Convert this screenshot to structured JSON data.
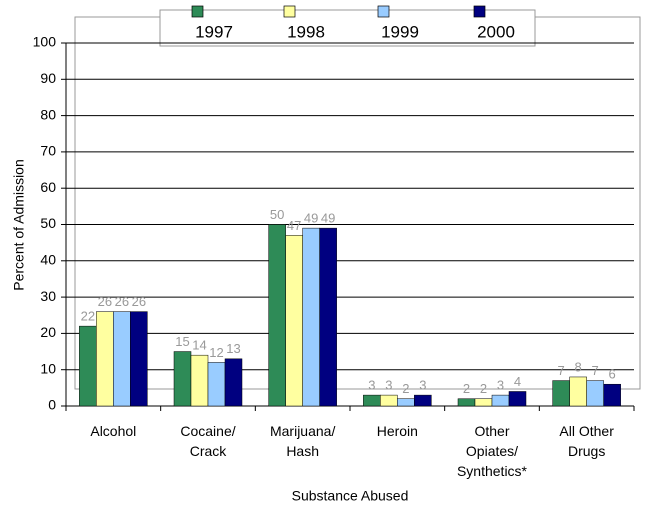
{
  "chart_data": {
    "type": "bar",
    "x_label": "Substance Abused",
    "y_label": "Percent of Admission",
    "categories": [
      "Alcohol",
      "Cocaine/\nCrack",
      "Marijuana/\nHash",
      "Heroin",
      "Other\nOpiates/\nSynthetics*",
      "All Other\nDrugs"
    ],
    "series": [
      {
        "name": "1997",
        "color": "#2e8b57",
        "values": [
          22,
          15,
          50,
          3,
          2,
          7
        ]
      },
      {
        "name": "1998",
        "color": "#ffffa0",
        "values": [
          26,
          14,
          47,
          3,
          2,
          8
        ]
      },
      {
        "name": "1999",
        "color": "#99ccff",
        "values": [
          26,
          12,
          49,
          2,
          3,
          7
        ]
      },
      {
        "name": "2000",
        "color": "#000080",
        "values": [
          26,
          13,
          49,
          3,
          4,
          6
        ]
      }
    ],
    "ylim": [
      0,
      100
    ],
    "yticks": [
      0,
      10,
      20,
      30,
      40,
      50,
      60,
      70,
      80,
      90,
      100
    ],
    "grid": true,
    "legend": "top"
  }
}
